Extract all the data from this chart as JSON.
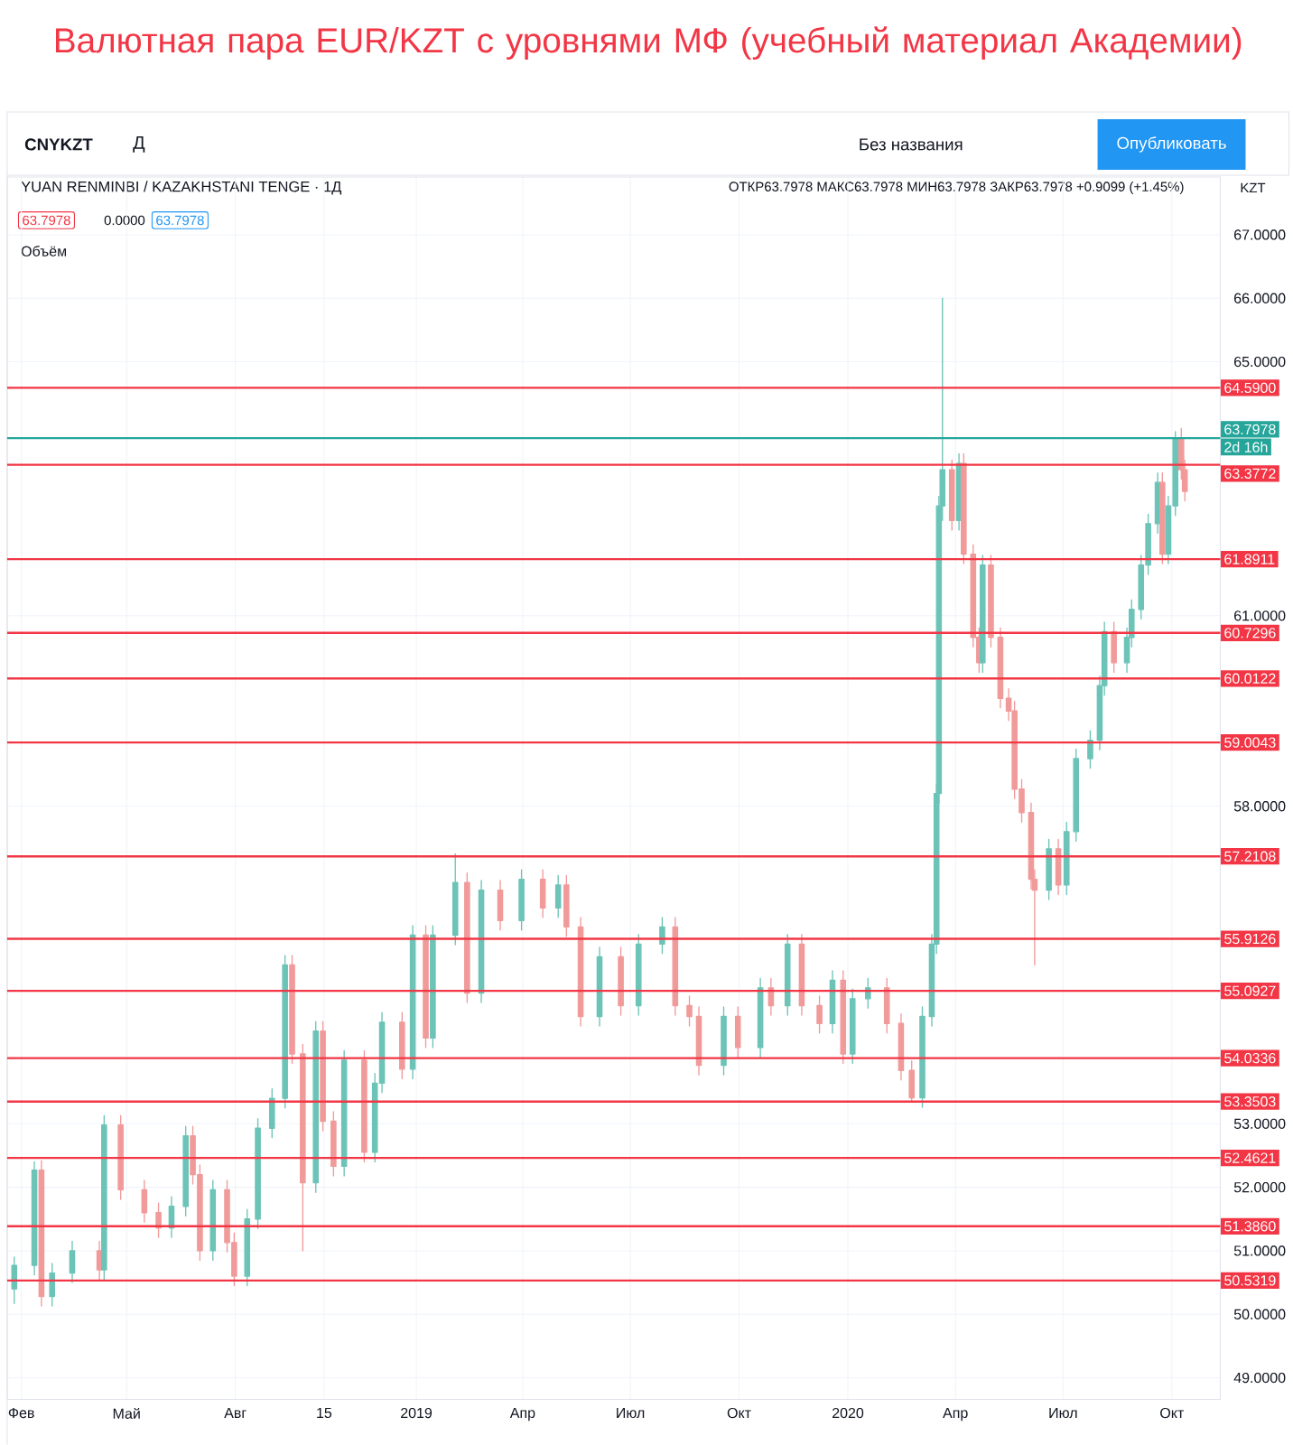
{
  "chart_data": {
    "type": "candlestick",
    "title": "Валютная пара EUR/KZT с уровнями МФ (учебный материал Академии)",
    "annotations": [
      "CNYKZT",
      "Д",
      "Без названия",
      "Опубликовать",
      "YUAN RENMINBI / KAZAKHSTANI TENGE · 1Д",
      "ОТКР63.7978 МАКС63.7978 МИН63.7978 ЗАКР63.7978 +0.9099 (+1.45%)",
      "KZT",
      "63.7978",
      "0.0000",
      "63.7978",
      "Объём",
      "2d 16h"
    ],
    "x": [
      "2018-01-26",
      "2018-02-12",
      "2018-02-18",
      "2018-02-27",
      "2018-03-16",
      "2018-04-08",
      "2018-04-12",
      "2018-04-26",
      "2018-05-16",
      "2018-05-28",
      "2018-06-08",
      "2018-06-20",
      "2018-06-26",
      "2018-07-02",
      "2018-07-13",
      "2018-07-25",
      "2018-07-31",
      "2018-08-11",
      "2018-08-20",
      "2018-09-01",
      "2018-09-12",
      "2018-09-18",
      "2018-09-27",
      "2018-10-08",
      "2018-10-14",
      "2018-10-23",
      "2018-11-01",
      "2018-11-18",
      "2018-11-27",
      "2018-12-03",
      "2018-12-20",
      "2018-12-29",
      "2019-01-09",
      "2019-01-15",
      "2019-02-03",
      "2019-02-13",
      "2019-02-25",
      "2019-03-13",
      "2019-03-31",
      "2019-04-18",
      "2019-05-01",
      "2019-05-08",
      "2019-05-20",
      "2019-06-05",
      "2019-06-23",
      "2019-07-08",
      "2019-07-28",
      "2019-08-08",
      "2019-08-20",
      "2019-08-28",
      "2019-09-18",
      "2019-09-30",
      "2019-10-19",
      "2019-10-28",
      "2019-11-11",
      "2019-11-23",
      "2019-12-08",
      "2019-12-19",
      "2019-12-28",
      "2020-01-05",
      "2020-01-18",
      "2020-02-03",
      "2020-02-15",
      "2020-02-24",
      "2020-03-04",
      "2020-03-12",
      "2020-03-16",
      "2020-03-18",
      "2020-03-21",
      "2020-03-29",
      "2020-04-04",
      "2020-04-08",
      "2020-04-16",
      "2020-04-21",
      "2020-04-24",
      "2020-05-01",
      "2020-05-09",
      "2020-05-16",
      "2020-05-21",
      "2020-05-27",
      "2020-06-04",
      "2020-06-07",
      "2020-06-19",
      "2020-06-27",
      "2020-07-04",
      "2020-07-12",
      "2020-07-24",
      "2020-08-01",
      "2020-08-05",
      "2020-08-13",
      "2020-08-24",
      "2020-08-28",
      "2020-09-05",
      "2020-09-11",
      "2020-09-19",
      "2020-09-23",
      "2020-09-28",
      "2020-10-04",
      "2020-10-09",
      "2020-10-12"
    ],
    "ohlc": [
      [
        50.4,
        50.9,
        50.17,
        50.77
      ],
      [
        50.77,
        52.4,
        50.62,
        52.27
      ],
      [
        52.27,
        52.42,
        50.13,
        50.28
      ],
      [
        50.28,
        50.8,
        50.13,
        50.65
      ],
      [
        50.65,
        51.15,
        50.5,
        51.0
      ],
      [
        51.0,
        51.15,
        50.55,
        50.7
      ],
      [
        50.7,
        53.13,
        50.55,
        52.98
      ],
      [
        52.98,
        53.13,
        51.81,
        51.96
      ],
      [
        51.96,
        52.11,
        51.45,
        51.6
      ],
      [
        51.6,
        51.75,
        51.21,
        51.36
      ],
      [
        51.36,
        51.85,
        51.21,
        51.7
      ],
      [
        51.7,
        52.96,
        51.55,
        52.81
      ],
      [
        52.81,
        52.96,
        52.05,
        52.2
      ],
      [
        52.2,
        52.35,
        50.85,
        51.0
      ],
      [
        51.0,
        52.11,
        50.85,
        51.96
      ],
      [
        51.96,
        52.11,
        50.98,
        51.13
      ],
      [
        51.13,
        51.28,
        50.45,
        50.6
      ],
      [
        50.6,
        51.65,
        50.45,
        51.5
      ],
      [
        51.5,
        53.08,
        51.35,
        52.93
      ],
      [
        52.93,
        53.55,
        52.78,
        53.4
      ],
      [
        53.4,
        55.65,
        53.25,
        55.5
      ],
      [
        55.5,
        55.65,
        53.95,
        54.1
      ],
      [
        54.1,
        54.25,
        51.0,
        52.07
      ],
      [
        52.07,
        54.61,
        51.92,
        54.46
      ],
      [
        54.46,
        54.61,
        52.89,
        53.04
      ],
      [
        53.04,
        53.19,
        52.18,
        52.33
      ],
      [
        52.33,
        54.15,
        52.18,
        54.0
      ],
      [
        54.0,
        54.15,
        52.4,
        52.55
      ],
      [
        52.55,
        53.79,
        52.4,
        53.64
      ],
      [
        53.64,
        54.75,
        53.49,
        54.6
      ],
      [
        54.6,
        54.75,
        53.71,
        53.86
      ],
      [
        53.86,
        56.12,
        53.71,
        55.97
      ],
      [
        55.97,
        56.12,
        54.2,
        54.35
      ],
      [
        54.35,
        56.12,
        54.2,
        55.97
      ],
      [
        55.97,
        57.25,
        55.82,
        56.8
      ],
      [
        56.8,
        56.95,
        54.91,
        55.06
      ],
      [
        55.06,
        56.83,
        54.91,
        56.68
      ],
      [
        56.68,
        56.83,
        56.05,
        56.2
      ],
      [
        56.2,
        57.0,
        56.05,
        56.85
      ],
      [
        56.85,
        57.0,
        56.25,
        56.4
      ],
      [
        56.4,
        56.91,
        56.25,
        56.76
      ],
      [
        56.76,
        56.91,
        55.95,
        56.1
      ],
      [
        56.1,
        56.25,
        54.54,
        54.69
      ],
      [
        54.69,
        55.78,
        54.54,
        55.63
      ],
      [
        55.63,
        55.78,
        54.71,
        54.86
      ],
      [
        54.86,
        55.98,
        54.71,
        55.83
      ],
      [
        55.83,
        56.25,
        55.68,
        56.1
      ],
      [
        56.1,
        56.25,
        54.71,
        54.86
      ],
      [
        54.86,
        55.01,
        54.54,
        54.69
      ],
      [
        54.69,
        54.84,
        53.77,
        53.92
      ],
      [
        53.92,
        54.84,
        53.77,
        54.69
      ],
      [
        54.69,
        54.84,
        54.05,
        54.2
      ],
      [
        54.2,
        55.29,
        54.05,
        55.14
      ],
      [
        55.14,
        55.29,
        54.71,
        54.86
      ],
      [
        54.86,
        55.98,
        54.71,
        55.83
      ],
      [
        55.83,
        55.98,
        54.71,
        54.86
      ],
      [
        54.86,
        55.01,
        54.43,
        54.58
      ],
      [
        54.58,
        55.41,
        54.43,
        55.26
      ],
      [
        55.26,
        55.41,
        53.95,
        54.1
      ],
      [
        54.1,
        55.12,
        53.95,
        54.97
      ],
      [
        54.97,
        55.29,
        54.82,
        55.14
      ],
      [
        55.14,
        55.29,
        54.43,
        54.58
      ],
      [
        54.58,
        54.73,
        53.69,
        53.84
      ],
      [
        53.84,
        53.99,
        53.35,
        53.41
      ],
      [
        53.41,
        54.84,
        53.26,
        54.69
      ],
      [
        54.69,
        55.98,
        54.54,
        55.83
      ],
      [
        55.83,
        58.35,
        55.68,
        58.2
      ],
      [
        58.2,
        62.88,
        58.05,
        62.73
      ],
      [
        62.73,
        66.0,
        62.5,
        63.3
      ],
      [
        63.3,
        63.45,
        62.35,
        62.5
      ],
      [
        62.5,
        63.55,
        62.35,
        63.4
      ],
      [
        63.4,
        63.55,
        61.82,
        61.97
      ],
      [
        61.97,
        62.12,
        60.51,
        60.66
      ],
      [
        60.66,
        60.81,
        60.11,
        60.26
      ],
      [
        60.26,
        61.95,
        60.11,
        61.8
      ],
      [
        61.8,
        61.95,
        60.51,
        60.66
      ],
      [
        60.66,
        60.81,
        59.55,
        59.7
      ],
      [
        59.7,
        59.85,
        59.35,
        59.5
      ],
      [
        59.5,
        59.65,
        58.12,
        58.27
      ],
      [
        58.27,
        58.42,
        57.75,
        57.9
      ],
      [
        57.9,
        58.05,
        56.7,
        56.85
      ],
      [
        56.85,
        57.0,
        55.5,
        56.68
      ],
      [
        56.68,
        57.48,
        56.53,
        57.33
      ],
      [
        57.33,
        57.48,
        56.61,
        56.76
      ],
      [
        56.76,
        57.75,
        56.61,
        57.6
      ],
      [
        57.6,
        58.9,
        57.45,
        58.75
      ],
      [
        58.75,
        59.19,
        58.6,
        59.04
      ],
      [
        59.04,
        60.05,
        58.89,
        59.9
      ],
      [
        59.9,
        60.9,
        59.75,
        60.75
      ],
      [
        60.75,
        60.9,
        60.11,
        60.26
      ],
      [
        60.26,
        60.81,
        60.11,
        60.66
      ],
      [
        60.66,
        61.25,
        60.51,
        61.1
      ],
      [
        61.1,
        61.95,
        60.95,
        61.8
      ],
      [
        61.8,
        62.6,
        61.65,
        62.45
      ],
      [
        62.45,
        63.25,
        62.3,
        63.1
      ],
      [
        63.1,
        63.25,
        61.82,
        61.97
      ],
      [
        61.97,
        62.88,
        61.82,
        62.73
      ],
      [
        62.73,
        63.9,
        62.58,
        63.8
      ],
      [
        63.8,
        63.95,
        63.15,
        63.3
      ],
      [
        63.3,
        63.45,
        62.81,
        62.96
      ]
    ],
    "xlim": [
      "2018-01-20",
      "2020-11-11"
    ],
    "xticks": [
      {
        "value": "2018-02-01",
        "label": "Фев"
      },
      {
        "value": "2018-05-01",
        "label": "Май"
      },
      {
        "value": "2018-08-01",
        "label": "Авг"
      },
      {
        "value": "2018-10-15",
        "label": "15"
      },
      {
        "value": "2019-01-01",
        "label": "2019"
      },
      {
        "value": "2019-04-01",
        "label": "Апр"
      },
      {
        "value": "2019-07-01",
        "label": "Июл"
      },
      {
        "value": "2019-10-01",
        "label": "Окт"
      },
      {
        "value": "2020-01-01",
        "label": "2020"
      },
      {
        "value": "2020-04-01",
        "label": "Апр"
      },
      {
        "value": "2020-07-01",
        "label": "Июл"
      },
      {
        "value": "2020-10-01",
        "label": "Окт"
      }
    ],
    "ylim": [
      48.66,
      67.91
    ],
    "yticks": [
      {
        "value": 49,
        "label": "49.0000"
      },
      {
        "value": 50,
        "label": "50.0000"
      },
      {
        "value": 51,
        "label": "51.0000"
      },
      {
        "value": 52,
        "label": "52.0000"
      },
      {
        "value": 53,
        "label": "53.0000"
      },
      {
        "value": 58,
        "label": "58.0000"
      },
      {
        "value": 61,
        "label": "61.0000"
      },
      {
        "value": 65,
        "label": "65.0000"
      },
      {
        "value": 66,
        "label": "66.0000"
      },
      {
        "value": 67,
        "label": "67.0000"
      }
    ],
    "grid": true,
    "ref_lines": [
      {
        "axis": "y",
        "value": 64.59,
        "label": "64.5900",
        "color": "#f23645"
      },
      {
        "axis": "y",
        "value": 63.3772,
        "label": "63.3772",
        "color": "#f23645"
      },
      {
        "axis": "y",
        "value": 61.8911,
        "label": "61.8911",
        "color": "#f23645"
      },
      {
        "axis": "y",
        "value": 60.7296,
        "label": "60.7296",
        "color": "#f23645"
      },
      {
        "axis": "y",
        "value": 60.0122,
        "label": "60.0122",
        "color": "#f23645"
      },
      {
        "axis": "y",
        "value": 59.0043,
        "label": "59.0043",
        "color": "#f23645"
      },
      {
        "axis": "y",
        "value": 57.2108,
        "label": "57.2108",
        "color": "#f23645"
      },
      {
        "axis": "y",
        "value": 55.9126,
        "label": "55.9126",
        "color": "#f23645"
      },
      {
        "axis": "y",
        "value": 55.0927,
        "label": "55.0927",
        "color": "#f23645"
      },
      {
        "axis": "y",
        "value": 54.0336,
        "label": "54.0336",
        "color": "#f23645"
      },
      {
        "axis": "y",
        "value": 53.3503,
        "label": "53.3503",
        "color": "#f23645"
      },
      {
        "axis": "y",
        "value": 52.4621,
        "label": "52.4621",
        "color": "#f23645"
      },
      {
        "axis": "y",
        "value": 51.386,
        "label": "51.3860",
        "color": "#f23645"
      },
      {
        "axis": "y",
        "value": 50.5319,
        "label": "50.5319",
        "color": "#f23645"
      },
      {
        "axis": "y",
        "value": 63.7978,
        "label": "63.7978",
        "color": "#26a69a"
      }
    ]
  }
}
